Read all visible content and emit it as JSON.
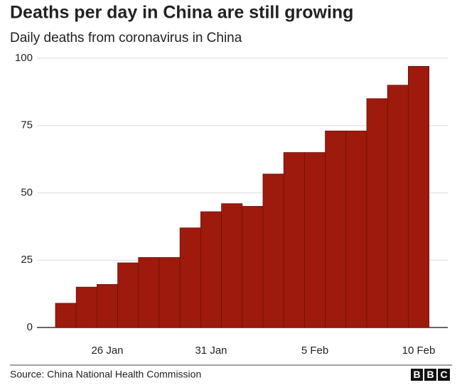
{
  "chart_data": {
    "type": "bar",
    "title": "Deaths per day in China are still growing",
    "subtitle": "Daily deaths from coronavirus in China",
    "source": "Source: China National Health Commission",
    "logo": [
      "B",
      "B",
      "C"
    ],
    "categories": [
      null,
      null,
      "26 Jan",
      null,
      null,
      null,
      null,
      "31 Jan",
      null,
      null,
      null,
      null,
      "5 Feb",
      null,
      null,
      null,
      null,
      "10 Feb"
    ],
    "values": [
      9,
      15,
      16,
      24,
      26,
      26,
      37,
      43,
      46,
      45,
      57,
      65,
      65,
      73,
      73,
      85,
      90,
      97
    ],
    "color": "#9e1a0c",
    "ylim": [
      0,
      100
    ],
    "yticks": [
      0,
      25,
      50,
      75,
      100
    ],
    "grid": true
  }
}
